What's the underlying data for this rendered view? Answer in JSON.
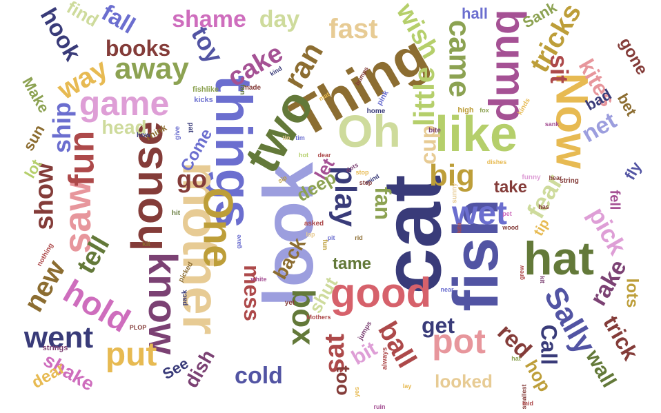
{
  "palette": {
    "navy": "#393b79",
    "blue": "#5254a3",
    "periwinkle": "#6b6ecf",
    "lavender": "#9c9ede",
    "olive": "#637939",
    "green": "#8ca252",
    "lime": "#b5cf6b",
    "pale_lime": "#cedb9c",
    "brown": "#8c6d31",
    "gold": "#bd9e39",
    "yellow": "#e7ba52",
    "tan": "#e7cb94",
    "maroon": "#843c39",
    "red": "#ad494a",
    "rose": "#d6616b",
    "pink": "#e7969c",
    "plum": "#7b4173",
    "magenta": "#a55194",
    "orchid": "#ce6dbd",
    "light_orchid": "#de9ed6"
  },
  "words": [
    {
      "id": "cat",
      "text": "cat",
      "color": "#393b79"
    },
    {
      "id": "fish",
      "text": "fish",
      "color": "#5254a3"
    },
    {
      "id": "look",
      "text": "look",
      "color": "#9c9ede"
    },
    {
      "id": "things",
      "text": "things",
      "color": "#6b6ecf"
    },
    {
      "id": "thing",
      "text": "Thing",
      "color": "#8c6d31"
    },
    {
      "id": "two",
      "text": "two",
      "color": "#637939"
    },
    {
      "id": "house",
      "text": "house",
      "color": "#843c39"
    },
    {
      "id": "mother",
      "text": "mother",
      "color": "#e7cb94"
    },
    {
      "id": "one",
      "text": "One",
      "color": "#bd9e39"
    },
    {
      "id": "oh",
      "text": "Oh",
      "color": "#cedb9c"
    },
    {
      "id": "like",
      "text": "like",
      "color": "#b5cf6b"
    },
    {
      "id": "now",
      "text": "Now",
      "color": "#e7ba52"
    },
    {
      "id": "hat",
      "text": "hat",
      "color": "#637939"
    },
    {
      "id": "bump",
      "text": "bump",
      "color": "#a55194"
    },
    {
      "id": "know",
      "text": "know",
      "color": "#7b4173"
    },
    {
      "id": "good",
      "text": "good",
      "color": "#d6616b"
    },
    {
      "id": "saw",
      "text": "saw",
      "color": "#e7969c"
    },
    {
      "id": "fun",
      "text": "fun",
      "color": "#ad494a"
    },
    {
      "id": "game",
      "text": "game",
      "color": "#de9ed6"
    },
    {
      "id": "away",
      "text": "away",
      "color": "#8ca252"
    },
    {
      "id": "came",
      "text": "came",
      "color": "#8ca252"
    },
    {
      "id": "little",
      "text": "little",
      "color": "#b5cf6b"
    },
    {
      "id": "play",
      "text": "play",
      "color": "#393b79"
    },
    {
      "id": "hold",
      "text": "hold",
      "color": "#ce6dbd"
    },
    {
      "id": "sally",
      "text": "Sally",
      "color": "#5254a3"
    },
    {
      "id": "box",
      "text": "box",
      "color": "#637939"
    },
    {
      "id": "pot",
      "text": "pot",
      "color": "#e7969c"
    },
    {
      "id": "ball",
      "text": "ball",
      "color": "#ad494a"
    },
    {
      "id": "fear",
      "text": "fear",
      "color": "#cedb9c"
    },
    {
      "id": "pick",
      "text": "pick",
      "color": "#de9ed6"
    },
    {
      "id": "wet",
      "text": "wet",
      "color": "#6b6ecf"
    },
    {
      "id": "big",
      "text": "big",
      "color": "#bd9e39"
    },
    {
      "id": "ran",
      "text": "ran",
      "color": "#8c6d31"
    },
    {
      "id": "went",
      "text": "went",
      "color": "#393b79"
    },
    {
      "id": "put",
      "text": "put",
      "color": "#e7ba52"
    },
    {
      "id": "new",
      "text": "new",
      "color": "#8c6d31"
    },
    {
      "id": "tell",
      "text": "tell",
      "color": "#637939"
    },
    {
      "id": "show",
      "text": "show",
      "color": "#843c39"
    },
    {
      "id": "go",
      "text": "go",
      "color": "#843c39"
    },
    {
      "id": "cake",
      "text": "cake",
      "color": "#a55194"
    },
    {
      "id": "toy",
      "text": "toy",
      "color": "#5254a3"
    },
    {
      "id": "books",
      "text": "books",
      "color": "#843c39"
    },
    {
      "id": "way",
      "text": "way",
      "color": "#e7ba52"
    },
    {
      "id": "ship",
      "text": "ship",
      "color": "#6b6ecf"
    },
    {
      "id": "shame",
      "text": "shame",
      "color": "#ce6dbd"
    },
    {
      "id": "day",
      "text": "day",
      "color": "#cedb9c"
    },
    {
      "id": "fast",
      "text": "fast",
      "color": "#e7cb94"
    },
    {
      "id": "wish",
      "text": "wish",
      "color": "#b5cf6b"
    },
    {
      "id": "tricks",
      "text": "tricks",
      "color": "#bd9e39"
    },
    {
      "id": "sit",
      "text": "sit",
      "color": "#ad494a"
    },
    {
      "id": "kites",
      "text": "kites",
      "color": "#e7969c"
    },
    {
      "id": "net",
      "text": "net",
      "color": "#9c9ede"
    },
    {
      "id": "cup",
      "text": "cup",
      "color": "#e7cb94"
    },
    {
      "id": "fan",
      "text": "fan",
      "color": "#8ca252"
    },
    {
      "id": "let",
      "text": "let",
      "color": "#a55194"
    },
    {
      "id": "deep",
      "text": "deep",
      "color": "#8ca252"
    },
    {
      "id": "take",
      "text": "take",
      "color": "#843c39"
    },
    {
      "id": "get",
      "text": "get",
      "color": "#393b79"
    },
    {
      "id": "red",
      "text": "red",
      "color": "#843c39"
    },
    {
      "id": "call",
      "text": "Call",
      "color": "#393b79"
    },
    {
      "id": "rake",
      "text": "rake",
      "color": "#7b4173"
    },
    {
      "id": "trick",
      "text": "trick",
      "color": "#843c39"
    },
    {
      "id": "wall",
      "text": "wall",
      "color": "#637939"
    },
    {
      "id": "hop",
      "text": "hop",
      "color": "#bd9e39"
    },
    {
      "id": "lots",
      "text": "lots",
      "color": "#bd9e39"
    },
    {
      "id": "sat",
      "text": "sat",
      "color": "#ad494a"
    },
    {
      "id": "bit",
      "text": "bit",
      "color": "#de9ed6"
    },
    {
      "id": "shut",
      "text": "shut",
      "color": "#cedb9c"
    },
    {
      "id": "tame",
      "text": "tame",
      "color": "#637939"
    },
    {
      "id": "back",
      "text": "back",
      "color": "#8c6d31"
    },
    {
      "id": "mess",
      "text": "mess",
      "color": "#ad494a"
    },
    {
      "id": "cold",
      "text": "cold",
      "color": "#5254a3"
    },
    {
      "id": "dish",
      "text": "dish",
      "color": "#7b4173"
    },
    {
      "id": "see",
      "text": "See",
      "color": "#393b79"
    },
    {
      "id": "shake",
      "text": "shake",
      "color": "#ce6dbd"
    },
    {
      "id": "dear",
      "text": "dear",
      "color": "#e7ba52"
    },
    {
      "id": "looked",
      "text": "looked",
      "color": "#e7cb94"
    },
    {
      "id": "too",
      "text": "too",
      "color": "#843c39"
    },
    {
      "id": "fall",
      "text": "fall",
      "color": "#6b6ecf"
    },
    {
      "id": "find",
      "text": "find",
      "color": "#cedb9c"
    },
    {
      "id": "hook",
      "text": "hook",
      "color": "#393b79"
    },
    {
      "id": "make",
      "text": "Make",
      "color": "#8ca252"
    },
    {
      "id": "head",
      "text": "head",
      "color": "#cedb9c"
    },
    {
      "id": "sun",
      "text": "sun",
      "color": "#8c6d31"
    },
    {
      "id": "lot",
      "text": "lot",
      "color": "#b5cf6b"
    },
    {
      "id": "come",
      "text": "Come",
      "color": "#6b6ecf"
    },
    {
      "id": "hall",
      "text": "hall",
      "color": "#6b6ecf"
    },
    {
      "id": "sank",
      "text": "Sank",
      "color": "#8ca252"
    },
    {
      "id": "gone",
      "text": "gone",
      "color": "#843c39"
    },
    {
      "id": "bad",
      "text": "bad",
      "color": "#393b79"
    },
    {
      "id": "bet",
      "text": "bet",
      "color": "#8c6d31"
    },
    {
      "id": "fly",
      "text": "fly",
      "color": "#5254a3"
    },
    {
      "id": "fell",
      "text": "fell",
      "color": "#a55194"
    },
    {
      "id": "tip",
      "text": "tip",
      "color": "#e7ba52"
    },
    {
      "id": "fishlike",
      "text": "fishlike",
      "color": "#8ca252"
    },
    {
      "id": "kicks",
      "text": "kicks",
      "color": "#6b6ecf"
    },
    {
      "id": "made",
      "text": "made",
      "color": "#843c39"
    },
    {
      "id": "kind",
      "text": "kind",
      "color": "#393b79"
    },
    {
      "id": "bumps",
      "text": "bumps",
      "color": "#843c39"
    },
    {
      "id": "pink",
      "text": "pink",
      "color": "#6b6ecf"
    },
    {
      "id": "home",
      "text": "home",
      "color": "#393b79"
    },
    {
      "id": "high",
      "text": "high",
      "color": "#bd9e39"
    },
    {
      "id": "fox",
      "text": "fox",
      "color": "#8ca252"
    },
    {
      "id": "kinds",
      "text": "kinds",
      "color": "#e7ba52"
    },
    {
      "id": "bite",
      "text": "bite",
      "color": "#7b4173"
    },
    {
      "id": "funny",
      "text": "funny",
      "color": "#de9ed6"
    },
    {
      "id": "string",
      "text": "string",
      "color": "#843c39"
    },
    {
      "id": "think",
      "text": "Think",
      "color": "#8c6d31"
    },
    {
      "id": "how",
      "text": "how",
      "color": "#393b79"
    },
    {
      "id": "give",
      "text": "give",
      "color": "#6b6ecf"
    },
    {
      "id": "pat",
      "text": "pat",
      "color": "#393b79"
    },
    {
      "id": "hit",
      "text": "hit",
      "color": "#637939"
    },
    {
      "id": "kit",
      "text": "kit",
      "color": "#8c6d31"
    },
    {
      "id": "strings",
      "text": "strings",
      "color": "#7b4173"
    },
    {
      "id": "nothing",
      "text": "nothing",
      "color": "#ad494a"
    },
    {
      "id": "picked",
      "text": "picked",
      "color": "#8c6d31"
    },
    {
      "id": "pack",
      "text": "pack",
      "color": "#393b79"
    },
    {
      "id": "plop",
      "text": "PLOP",
      "color": "#843c39"
    },
    {
      "id": "yet",
      "text": "yet",
      "color": "#843c39"
    },
    {
      "id": "white",
      "text": "white",
      "color": "#a55194"
    },
    {
      "id": "mothers",
      "text": "Mothers",
      "color": "#ad494a"
    },
    {
      "id": "fan2",
      "text": "fan",
      "color": "#637939"
    },
    {
      "id": "jumps",
      "text": "jumps",
      "color": "#7b4173"
    },
    {
      "id": "near",
      "text": "near",
      "color": "#6b6ecf"
    },
    {
      "id": "always",
      "text": "always",
      "color": "#ad494a"
    },
    {
      "id": "smallest",
      "text": "smallest",
      "color": "#843c39"
    },
    {
      "id": "yes",
      "text": "yes",
      "color": "#e7ba52"
    },
    {
      "id": "hear",
      "text": "hear",
      "color": "#843c39"
    },
    {
      "id": "sunny",
      "text": "sunny",
      "color": "#e7cb94"
    },
    {
      "id": "kite",
      "text": "kite",
      "color": "#ad494a"
    },
    {
      "id": "ruin",
      "text": "ruin",
      "color": "#a55194"
    },
    {
      "id": "gave",
      "text": "gave",
      "color": "#6b6ecf"
    },
    {
      "id": "asked",
      "text": "asked",
      "color": "#ad494a"
    },
    {
      "id": "rid",
      "text": "rid",
      "color": "#8c6d31"
    },
    {
      "id": "mat",
      "text": "mat",
      "color": "#e7ba52"
    },
    {
      "id": "mind",
      "text": "mind",
      "color": "#393b79"
    },
    {
      "id": "dots",
      "text": "dots",
      "color": "#7b4173"
    },
    {
      "id": "stop",
      "text": "stop",
      "color": "#e7ba52"
    },
    {
      "id": "step",
      "text": "step",
      "color": "#843c39"
    },
    {
      "id": "dear2",
      "text": "dear",
      "color": "#ad494a"
    },
    {
      "id": "sip",
      "text": "sip",
      "color": "#bd9e39"
    },
    {
      "id": "tin",
      "text": "tin",
      "color": "#e7cb94"
    },
    {
      "id": "hot",
      "text": "hot",
      "color": "#b5cf6b"
    },
    {
      "id": "tim",
      "text": "tim",
      "color": "#6b6ecf"
    },
    {
      "id": "fun2",
      "text": "fun",
      "color": "#bd9e39"
    },
    {
      "id": "lay",
      "text": "lay",
      "color": "#e7ba52"
    },
    {
      "id": "hat2",
      "text": "hat",
      "color": "#8ca252"
    },
    {
      "id": "wood",
      "text": "wood",
      "color": "#843c39"
    },
    {
      "id": "pet",
      "text": "pet",
      "color": "#ce6dbd"
    },
    {
      "id": "dishes",
      "text": "dishes",
      "color": "#e7ba52"
    },
    {
      "id": "sank2",
      "text": "sank",
      "color": "#a55194"
    },
    {
      "id": "grew",
      "text": "grew",
      "color": "#ad494a"
    },
    {
      "id": "pit",
      "text": "pit",
      "color": "#6b6ecf"
    },
    {
      "id": "lap",
      "text": "lap",
      "color": "#e7cb94"
    },
    {
      "id": "has",
      "text": "has",
      "color": "#843c39"
    },
    {
      "id": "kit2",
      "text": "kit",
      "color": "#7b4173"
    },
    {
      "id": "mid",
      "text": "mid",
      "color": "#ad494a"
    }
  ]
}
